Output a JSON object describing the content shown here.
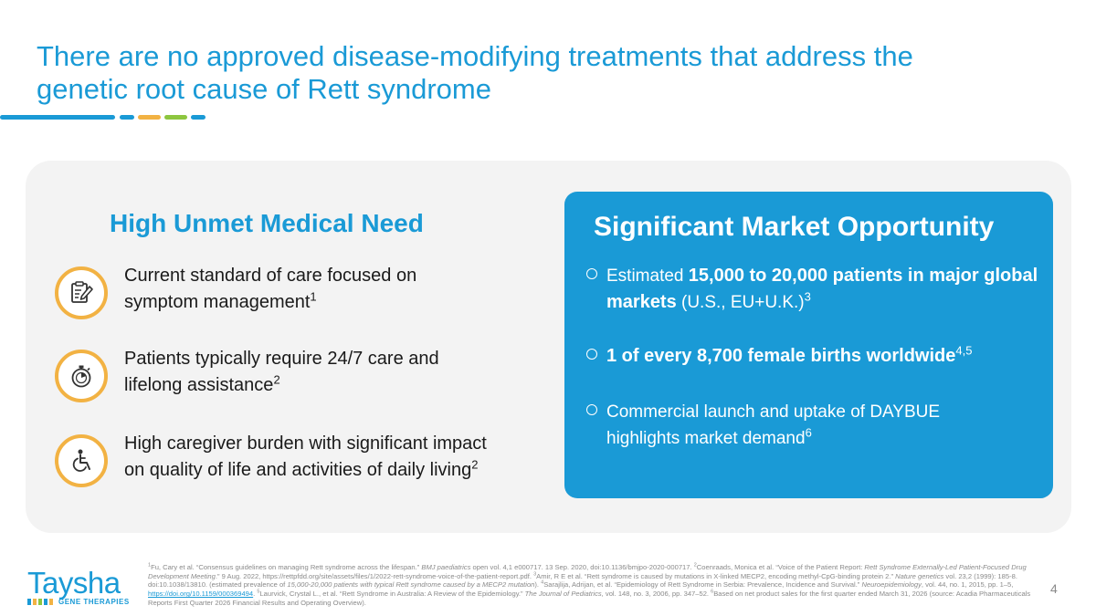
{
  "title": {
    "line1": "There are no approved disease-modifying treatments that address the",
    "line2": "genetic root cause of Rett syndrome"
  },
  "colors": {
    "brand_blue": "#1a9ad6",
    "accent_orange": "#f2b243",
    "accent_green": "#8dc63f",
    "card_background": "#f3f3f3"
  },
  "unmet_need": {
    "heading": "High Unmet Medical Need",
    "items": [
      {
        "icon": "clipboard-pen-icon",
        "line1": "Current standard of care focused on",
        "line2": "symptom management",
        "ref": "1"
      },
      {
        "icon": "stopwatch-icon",
        "line1": "Patients typically require 24/7 care and",
        "line2": "lifelong assistance",
        "ref": "2"
      },
      {
        "icon": "wheelchair-icon",
        "line1": "High caregiver burden with significant impact",
        "line2": "on quality of life and activities of daily living",
        "ref": "2"
      }
    ]
  },
  "market": {
    "heading": "Significant Market Opportunity",
    "items": [
      {
        "pre": "Estimated ",
        "bold": "15,000 to 20,000 patients in major global markets",
        "post": " (U.S., EU+U.K.)",
        "ref": "3"
      },
      {
        "pre": "",
        "bold": "1 of every 8,700 female births worldwide",
        "post": "",
        "ref": "4,5"
      },
      {
        "pre": "Commercial launch and uptake of DAYBUE highlights market demand",
        "bold": "",
        "post": "",
        "ref": "6"
      }
    ]
  },
  "logo": {
    "word": "Taysha",
    "sub": "GENE THERAPIES"
  },
  "footnotes": {
    "r1": "1",
    "t1a": "Fu, Cary et al. “Consensus guidelines on managing Rett syndrome across the lifespan.” ",
    "t1i": "BMJ paediatrics",
    "t1b": " open vol. 4,1 e000717. 13 Sep. 2020, doi:10.1136/bmjpo-2020-000717. ",
    "r2": "2",
    "t2a": "Coenraads, Monica et al. “Voice of the Patient Report: ",
    "t2i": "Rett Syndrome Externally-Led Patient-Focused Drug Development Meeting",
    "t2b": ".” 9 Aug. 2022, https://rettpfdd.org/site/assets/files/1/2022-rett-syndrome-voice-of-the-patient-report.pdf. ",
    "r3": "3",
    "t3a": "Amir, R E et al. “Rett syndrome is caused by mutations in X-linked MECP2, encoding methyl-CpG-binding protein 2.” ",
    "t3i": "Nature genetics",
    "t3b": " vol. 23,2 (1999): 185-8. doi:10.1038/13810. (estimated prevalence of ",
    "t3i2": "15,000-20,000 patients with typical Rett syndrome caused by a MECP2 mutation",
    "t3c": "). ",
    "r4": "4",
    "t4a": "Sarajlija, Adrijan, et al. “Epidemiology of Rett Syndrome in Serbia: Prevalence, Incidence and Survival.” ",
    "t4i": "Neuroepidemiology",
    "t4b": ", vol. 44, no. 1, 2015, pp. 1–5, ",
    "t4link": "https://doi.org/10.1159/000369494",
    "t4c": ". ",
    "r5": "5",
    "t5a": "Laurvick, Crystal L., et al. “Rett Syndrome in Australia: A Review of the Epidemiology.” ",
    "t5i": "The Journal of Pediatrics",
    "t5b": ", vol. 148, no. 3, 2006, pp. 347–52. ",
    "r6": "6",
    "t6a": "Based on net product sales for the first quarter ended March 31, 2026 (source: Acadia Pharmaceuticals Reports First Quarter 2026 Financial Results and Operating Overview)."
  },
  "page_number": "4"
}
